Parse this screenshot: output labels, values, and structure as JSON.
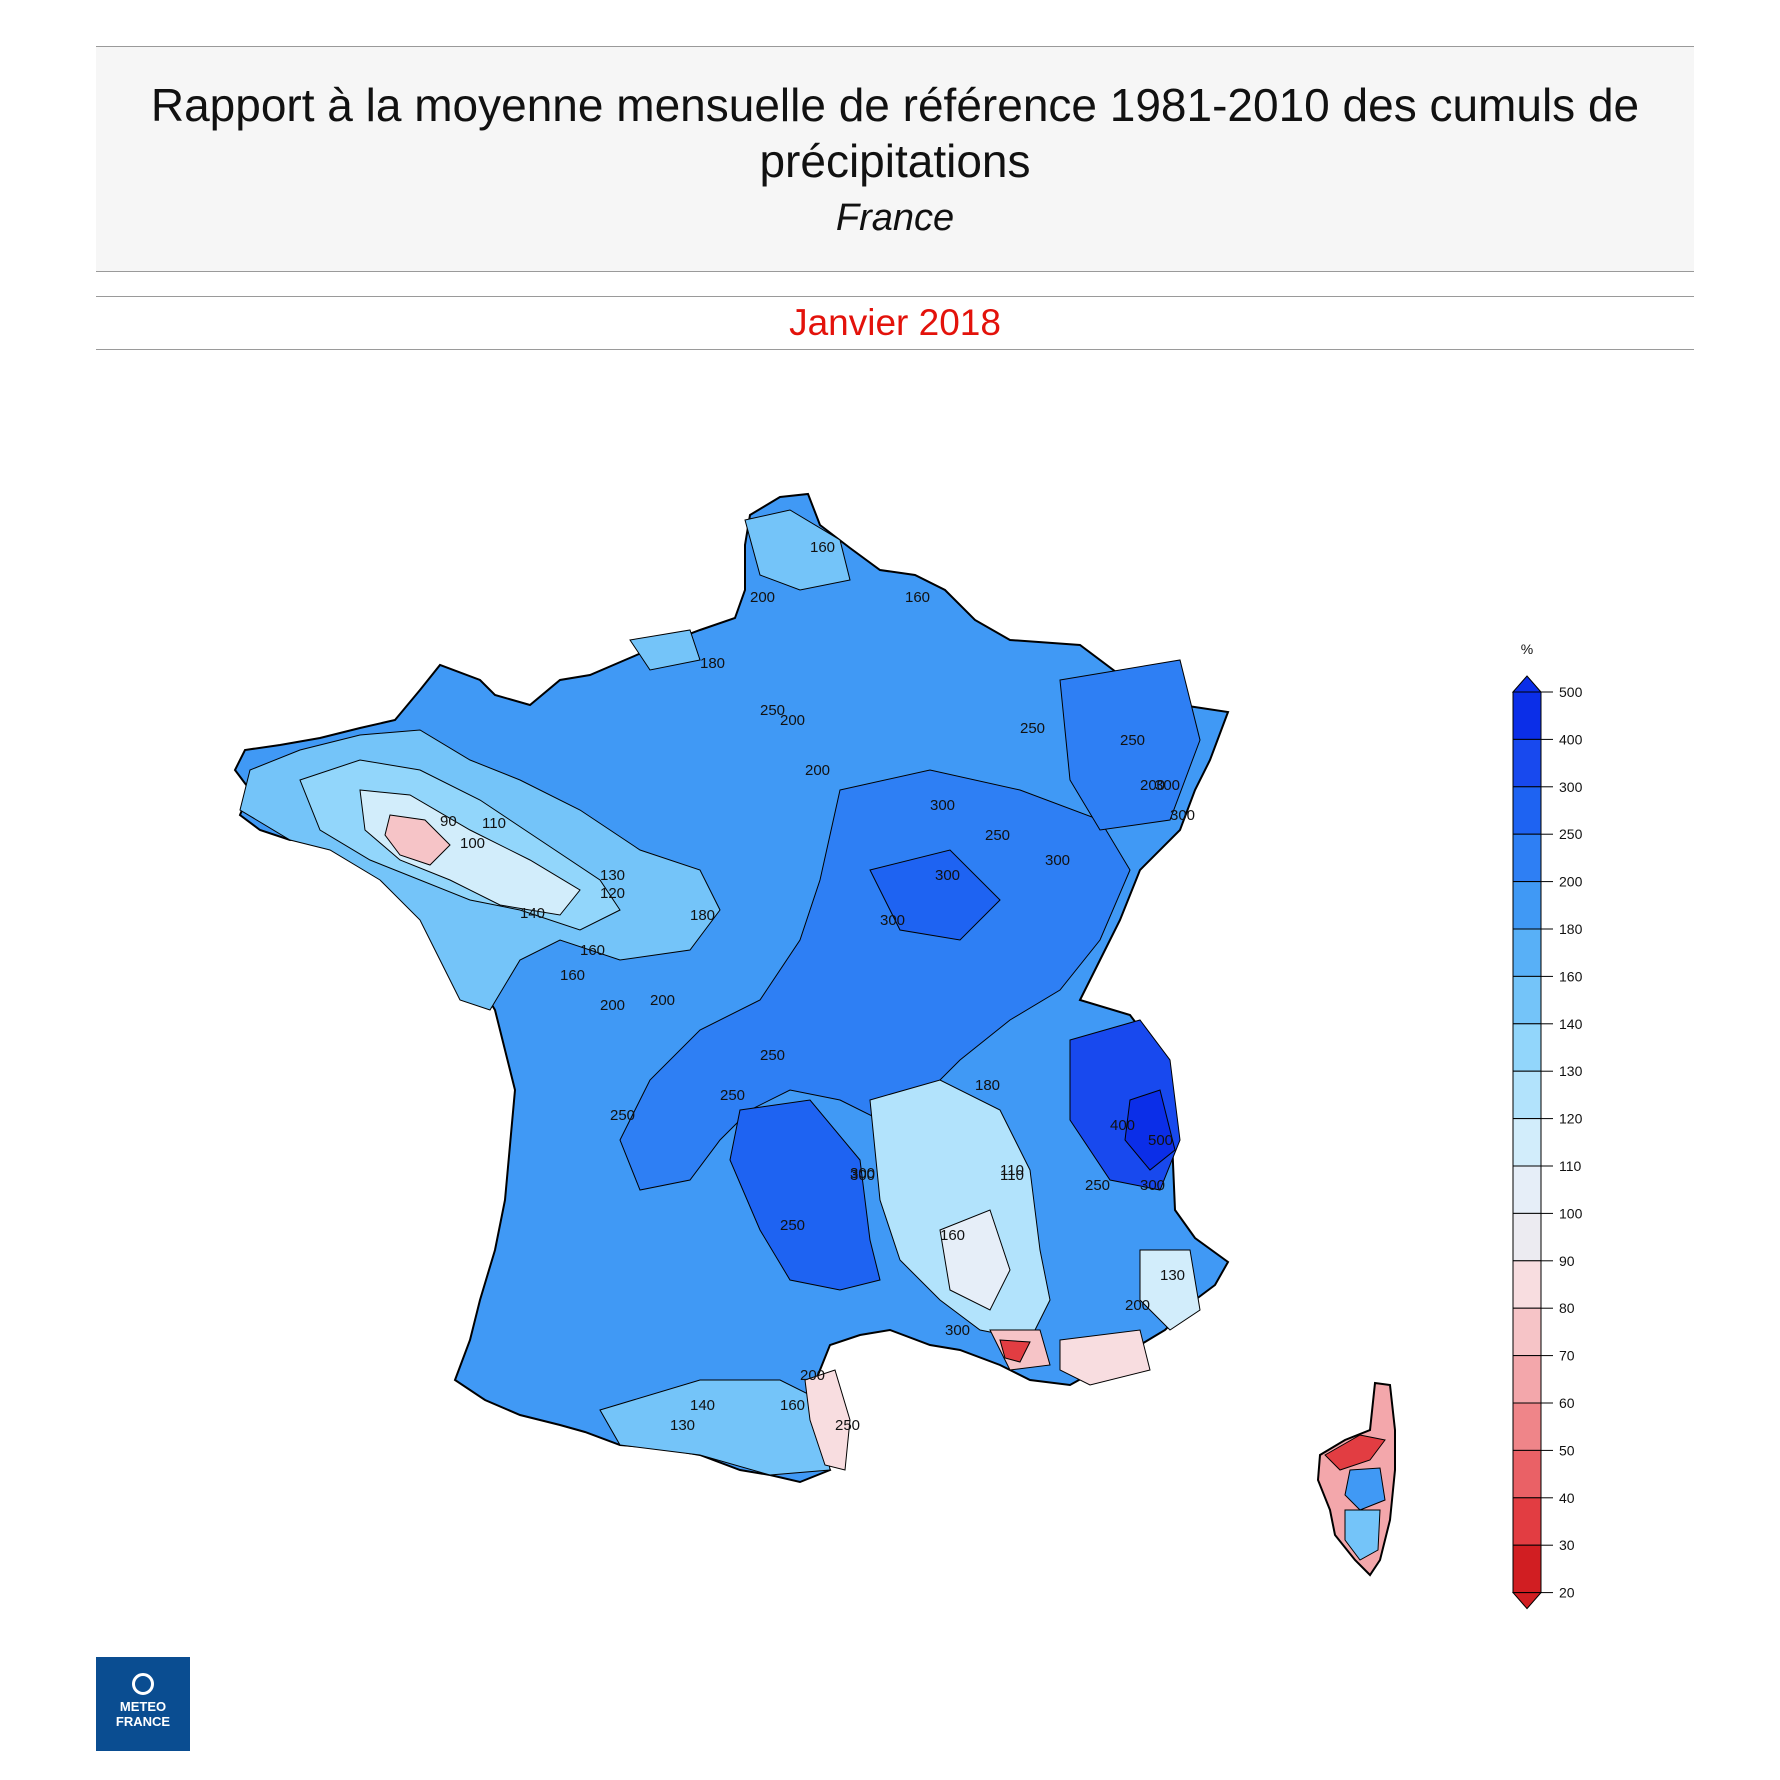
{
  "header": {
    "title": "Rapport à la moyenne mensuelle de référence 1981-2010 des cumuls de précipitations",
    "subtitle": "France"
  },
  "period": {
    "label": "Janvier 2018"
  },
  "legend": {
    "unit": "%",
    "ticks": [
      "500",
      "400",
      "300",
      "250",
      "200",
      "180",
      "160",
      "140",
      "130",
      "120",
      "110",
      "100",
      "90",
      "80",
      "70",
      "60",
      "50",
      "40",
      "30",
      "20"
    ],
    "colors": [
      "#0b2ee8",
      "#1849ee",
      "#1e63f2",
      "#2e7ff4",
      "#4099f5",
      "#58b0f7",
      "#74c4f9",
      "#92d6fb",
      "#b2e3fc",
      "#d2edfb",
      "#e6eef8",
      "#ecebf1",
      "#f8dde0",
      "#f6c4c7",
      "#f3a7ab",
      "#ef8589",
      "#ea6166",
      "#e23d42",
      "#d11e22"
    ]
  },
  "map": {
    "contour_labels": [
      "160",
      "200",
      "160",
      "180",
      "200",
      "250",
      "200",
      "250",
      "300",
      "250",
      "300",
      "300",
      "300",
      "250",
      "300",
      "200",
      "300",
      "90",
      "100",
      "110",
      "120",
      "130",
      "140",
      "160",
      "180",
      "160",
      "200",
      "200",
      "250",
      "250",
      "250",
      "300",
      "250",
      "180",
      "110",
      "160",
      "300",
      "200",
      "400",
      "500",
      "300",
      "250",
      "300",
      "250",
      "200",
      "160",
      "140",
      "130",
      "110",
      "130"
    ]
  },
  "logo": {
    "line1": "METEO",
    "line2": "FRANCE"
  }
}
